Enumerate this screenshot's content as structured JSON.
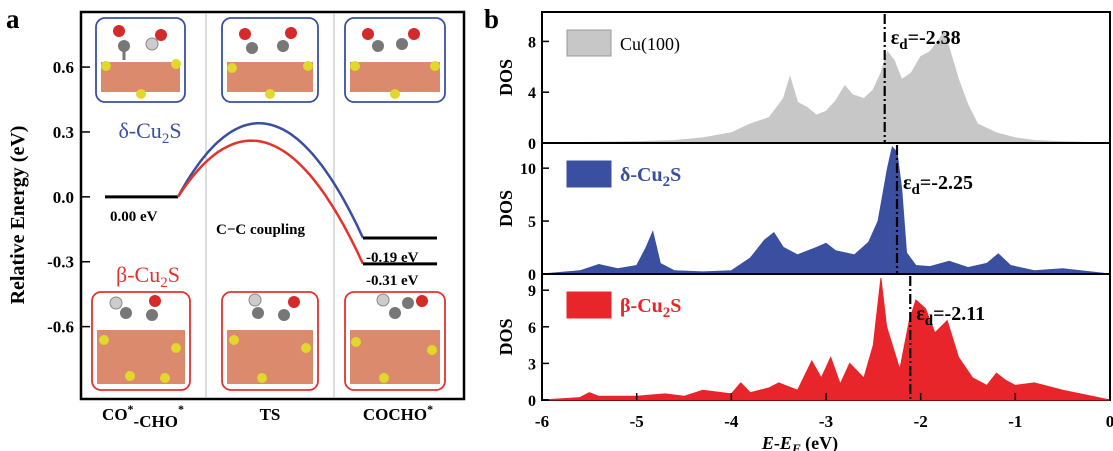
{
  "chart_data": [
    {
      "panel_label": "a",
      "type": "line",
      "ylabel": "Relative Energy (eV)",
      "ylim": [
        -0.93,
        0.85
      ],
      "yticks": [
        "0.6",
        "0.3",
        "0.0",
        "-0.3",
        "-0.6"
      ],
      "ytick_values": [
        0.6,
        0.3,
        0.0,
        -0.3,
        -0.6
      ],
      "categories": [
        "CO*-CHO*",
        "TS",
        "COCHO*"
      ],
      "category_labels": [
        {
          "main": "CO",
          "sup1": "*",
          "mid": "-CHO",
          "sup2": "*"
        },
        {
          "main": "TS",
          "sup1": "",
          "mid": "",
          "sup2": ""
        },
        {
          "main": "COCHO",
          "sup1": "*",
          "mid": "",
          "sup2": ""
        }
      ],
      "series": [
        {
          "name": "δ-Cu2S",
          "label_parts": [
            "δ-Cu",
            "2",
            "S"
          ],
          "color": "#3a4fa0",
          "values": [
            0.0,
            0.335,
            -0.19
          ]
        },
        {
          "name": "β-Cu2S",
          "label_parts": [
            "β-Cu",
            "2",
            "S"
          ],
          "color": "#e4332d",
          "values": [
            0.0,
            0.245,
            -0.31
          ]
        }
      ],
      "annotations": {
        "initial": "0.00 eV",
        "ts": "C−C coupling",
        "final_delta": "-0.19 eV",
        "final_beta": "-0.31 eV"
      },
      "vertical_separators": true
    },
    {
      "panel_label": "b",
      "type": "area",
      "xlabel_parts": [
        "E",
        "-",
        "E",
        "F",
        " (eV)"
      ],
      "xlim": [
        -6,
        0
      ],
      "xticks": [
        "-6",
        "-5",
        "-4",
        "-3",
        "-2",
        "-1",
        "0"
      ],
      "xtick_values": [
        -6,
        -5,
        -4,
        -3,
        -2,
        -1,
        0
      ],
      "panels": [
        {
          "name": "Cu(100)",
          "label_parts": [
            "Cu(100)",
            "",
            ""
          ],
          "color": "#c7c7c7",
          "ylabel": "DOS",
          "ylim": [
            0,
            10
          ],
          "yticks": [
            "8",
            "4",
            "0"
          ],
          "ytick_values": [
            8,
            4,
            0
          ],
          "d_band_center": -2.38,
          "d_band_label": "ε",
          "d_band_sub": "d",
          "d_band_value": "=-2.38",
          "x": [
            -6,
            -5.5,
            -5.0,
            -4.6,
            -4.3,
            -4.0,
            -3.8,
            -3.6,
            -3.45,
            -3.38,
            -3.3,
            -3.2,
            -3.1,
            -3.0,
            -2.9,
            -2.8,
            -2.72,
            -2.6,
            -2.5,
            -2.42,
            -2.35,
            -2.28,
            -2.2,
            -2.1,
            -2.0,
            -1.9,
            -1.8,
            -1.75,
            -1.7,
            -1.6,
            -1.5,
            -1.4,
            -1.2,
            -1.0,
            -0.8,
            -0.5,
            0
          ],
          "y": [
            0.0,
            0.05,
            0.1,
            0.2,
            0.4,
            0.8,
            1.5,
            2.0,
            3.5,
            5.2,
            3.2,
            2.8,
            2.2,
            2.5,
            3.3,
            4.5,
            3.8,
            3.5,
            4.2,
            5.5,
            7.2,
            6.5,
            5.0,
            5.5,
            6.8,
            7.2,
            8.2,
            8.8,
            7.5,
            5.0,
            3.0,
            1.5,
            0.8,
            0.4,
            0.2,
            0.1,
            0.0
          ]
        },
        {
          "name": "δ-Cu2S",
          "label_parts": [
            "δ-Cu",
            "2",
            "S"
          ],
          "color": "#3a4fa0",
          "ylabel": "DOS",
          "ylim": [
            0,
            12
          ],
          "yticks": [
            "10",
            "5",
            "0"
          ],
          "ytick_values": [
            10,
            5,
            0
          ],
          "d_band_center": -2.25,
          "d_band_label": "ε",
          "d_band_sub": "d",
          "d_band_value": "=-2.25",
          "x": [
            -6,
            -5.6,
            -5.4,
            -5.2,
            -5.0,
            -4.9,
            -4.83,
            -4.75,
            -4.6,
            -4.3,
            -4.0,
            -3.8,
            -3.65,
            -3.55,
            -3.45,
            -3.3,
            -3.1,
            -3.0,
            -2.9,
            -2.7,
            -2.55,
            -2.45,
            -2.35,
            -2.3,
            -2.25,
            -2.2,
            -2.15,
            -2.05,
            -1.9,
            -1.7,
            -1.5,
            -1.3,
            -1.18,
            -1.05,
            -0.8,
            -0.5,
            0
          ],
          "y": [
            0.0,
            0.3,
            0.9,
            0.5,
            0.8,
            2.5,
            4.0,
            1.0,
            0.3,
            0.2,
            0.3,
            1.5,
            3.2,
            3.9,
            2.5,
            1.8,
            2.5,
            2.9,
            2.2,
            1.8,
            3.0,
            5.0,
            10.0,
            12.0,
            11.5,
            8.0,
            2.0,
            0.8,
            0.7,
            1.2,
            0.6,
            1.0,
            1.9,
            0.8,
            0.3,
            0.5,
            0.0
          ]
        },
        {
          "name": "β-Cu2S",
          "label_parts": [
            "β-Cu",
            "2",
            "S"
          ],
          "color": "#e8252a",
          "ylabel": "DOS",
          "ylim": [
            0,
            10
          ],
          "yticks": [
            "9",
            "6",
            "3",
            "0"
          ],
          "ytick_values": [
            9,
            6,
            3,
            0
          ],
          "d_band_center": -2.11,
          "d_band_label": "ε",
          "d_band_sub": "d",
          "d_band_value": "=-2.11",
          "x": [
            -6,
            -5.6,
            -5.5,
            -5.4,
            -5.0,
            -4.7,
            -4.5,
            -4.3,
            -4.0,
            -3.9,
            -3.8,
            -3.6,
            -3.5,
            -3.3,
            -3.15,
            -3.05,
            -2.95,
            -2.85,
            -2.75,
            -2.6,
            -2.5,
            -2.42,
            -2.36,
            -2.3,
            -2.22,
            -2.12,
            -2.05,
            -1.95,
            -1.85,
            -1.72,
            -1.6,
            -1.45,
            -1.3,
            -1.2,
            -1.1,
            -1.0,
            -0.8,
            -0.5,
            0
          ],
          "y": [
            0.0,
            0.2,
            0.6,
            0.3,
            0.3,
            0.5,
            0.3,
            0.8,
            0.5,
            1.4,
            0.6,
            1.0,
            1.4,
            0.8,
            3.2,
            1.8,
            3.5,
            1.3,
            3.0,
            1.8,
            4.5,
            10.0,
            6.0,
            4.5,
            2.5,
            6.5,
            8.2,
            7.5,
            5.5,
            6.5,
            3.5,
            1.8,
            1.2,
            2.2,
            1.6,
            1.2,
            1.4,
            0.8,
            0.0
          ]
        }
      ]
    }
  ]
}
